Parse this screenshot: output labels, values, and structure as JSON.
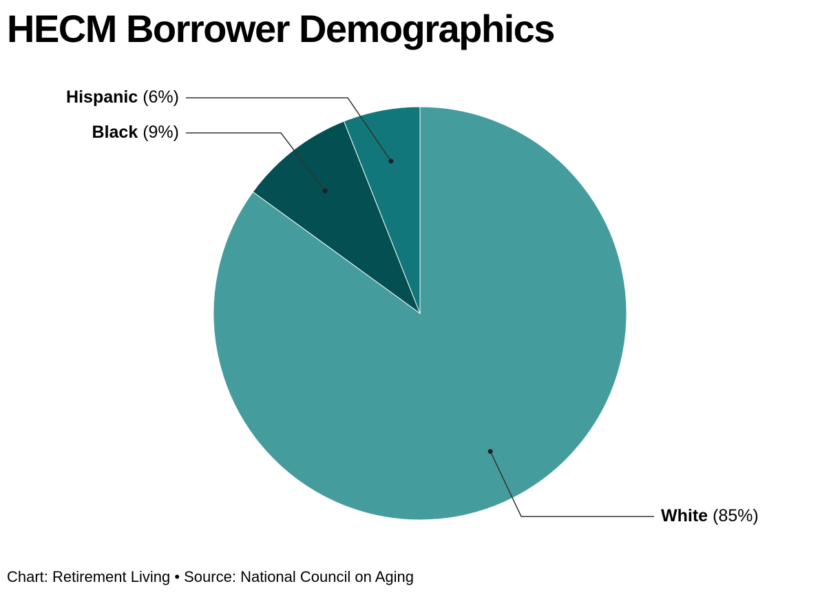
{
  "chart_data": {
    "type": "pie",
    "title": "HECM Borrower Demographics",
    "categories": [
      "White",
      "Black",
      "Hispanic"
    ],
    "values": [
      85,
      9,
      6
    ],
    "value_labels": [
      "(85%)",
      "(9%)",
      "(6%)"
    ],
    "colors": [
      "#459c9c",
      "#034f51",
      "#11777a"
    ],
    "source": "Chart: Retirement Living • Source: National Council on Aging"
  }
}
